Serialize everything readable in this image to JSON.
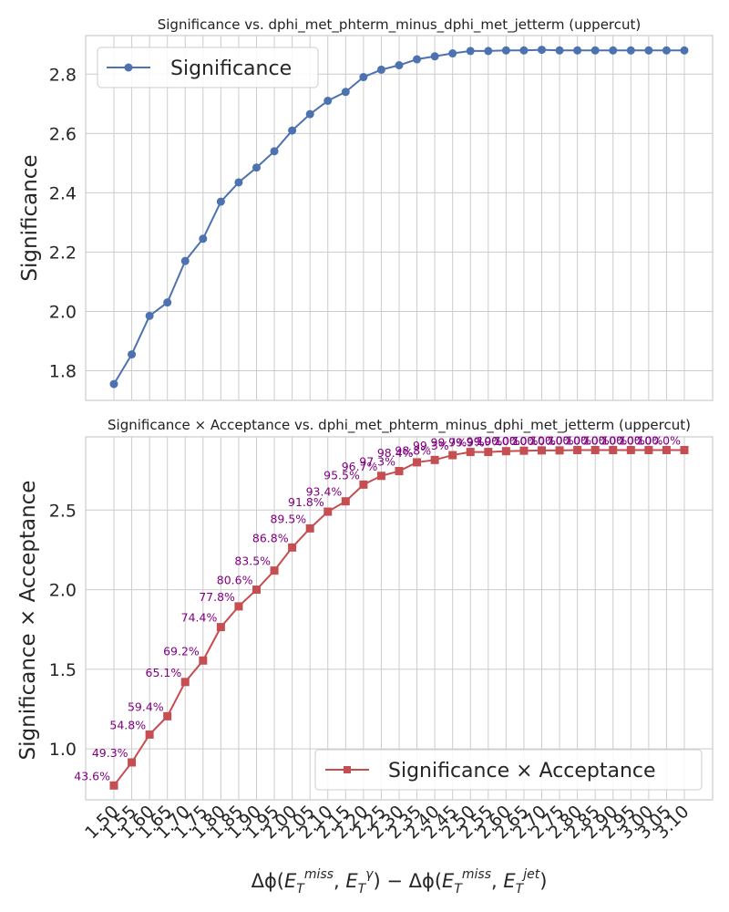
{
  "chart_data": [
    {
      "type": "line",
      "title": "Significance vs. dphi_met_phterm_minus_dphi_met_jetterm (uppercut)",
      "xlabel": "",
      "ylabel": "Significance",
      "x": [
        1.5,
        1.55,
        1.6,
        1.65,
        1.7,
        1.75,
        1.8,
        1.85,
        1.9,
        1.95,
        2.0,
        2.05,
        2.1,
        2.15,
        2.2,
        2.25,
        2.3,
        2.35,
        2.4,
        2.45,
        2.5,
        2.55,
        2.6,
        2.65,
        2.7,
        2.75,
        2.8,
        2.85,
        2.9,
        2.95,
        3.0,
        3.05,
        3.1
      ],
      "series": [
        {
          "name": "Significance",
          "color": "#4c72b0",
          "marker": "circle",
          "values": [
            1.755,
            1.855,
            1.985,
            2.03,
            2.17,
            2.245,
            2.37,
            2.435,
            2.485,
            2.54,
            2.61,
            2.665,
            2.71,
            2.74,
            2.79,
            2.815,
            2.83,
            2.85,
            2.86,
            2.87,
            2.878,
            2.878,
            2.88,
            2.88,
            2.882,
            2.88,
            2.88,
            2.88,
            2.88,
            2.88,
            2.88,
            2.88,
            2.88
          ]
        }
      ],
      "ylim": [
        1.7,
        2.93
      ],
      "yticks": [
        "1.8",
        "2.0",
        "2.2",
        "2.4",
        "2.6",
        "2.8"
      ],
      "grid": true,
      "legend": "upper-left"
    },
    {
      "type": "line",
      "title": "Significance × Acceptance vs. dphi_met_phterm_minus_dphi_met_jetterm (uppercut)",
      "xlabel": "Δϕ(E_T^miss, E_T^γ) − Δϕ(E_T^miss, E_T^jet)",
      "ylabel": "Significance × Acceptance",
      "x": [
        1.5,
        1.55,
        1.6,
        1.65,
        1.7,
        1.75,
        1.8,
        1.85,
        1.9,
        1.95,
        2.0,
        2.05,
        2.1,
        2.15,
        2.2,
        2.25,
        2.3,
        2.35,
        2.4,
        2.45,
        2.5,
        2.55,
        2.6,
        2.65,
        2.7,
        2.75,
        2.8,
        2.85,
        2.9,
        2.95,
        3.0,
        3.05,
        3.1
      ],
      "series": [
        {
          "name": "Significance × Acceptance",
          "color": "#c44e52",
          "marker": "square",
          "values": [
            0.77,
            0.915,
            1.09,
            1.205,
            1.42,
            1.555,
            1.765,
            1.895,
            2.0,
            2.12,
            2.265,
            2.385,
            2.49,
            2.555,
            2.66,
            2.715,
            2.745,
            2.8,
            2.815,
            2.845,
            2.865,
            2.865,
            2.87,
            2.873,
            2.875,
            2.875,
            2.877,
            2.877,
            2.877,
            2.877,
            2.877,
            2.877,
            2.877
          ]
        }
      ],
      "acceptance_labels": [
        "43.6%",
        "49.3%",
        "54.8%",
        "59.4%",
        "65.1%",
        "69.2%",
        "74.4%",
        "77.8%",
        "80.6%",
        "83.5%",
        "86.8%",
        "89.5%",
        "91.8%",
        "93.4%",
        "95.5%",
        "96.7%",
        "97.3%",
        "98.4%",
        "98.8%",
        "99.3%",
        "99.7%",
        "99.9%",
        "99.9%",
        "100.0%",
        "100.0%",
        "100.0%",
        "100.0%",
        "100.0%",
        "100.0%",
        "100.0%",
        "100.0%",
        "100.0%",
        "100.0%"
      ],
      "ylim": [
        0.68,
        2.96
      ],
      "yticks": [
        "1.0",
        "1.5",
        "2.0",
        "2.5"
      ],
      "xticks": [
        "1.50",
        "1.55",
        "1.60",
        "1.65",
        "1.70",
        "1.75",
        "1.80",
        "1.85",
        "1.90",
        "1.95",
        "2.00",
        "2.05",
        "2.10",
        "2.15",
        "2.20",
        "2.25",
        "2.30",
        "2.35",
        "2.40",
        "2.45",
        "2.50",
        "2.55",
        "2.60",
        "2.65",
        "2.70",
        "2.75",
        "2.80",
        "2.85",
        "2.90",
        "2.95",
        "3.00",
        "3.05",
        "3.10"
      ],
      "grid": true,
      "legend": "lower-right"
    }
  ]
}
